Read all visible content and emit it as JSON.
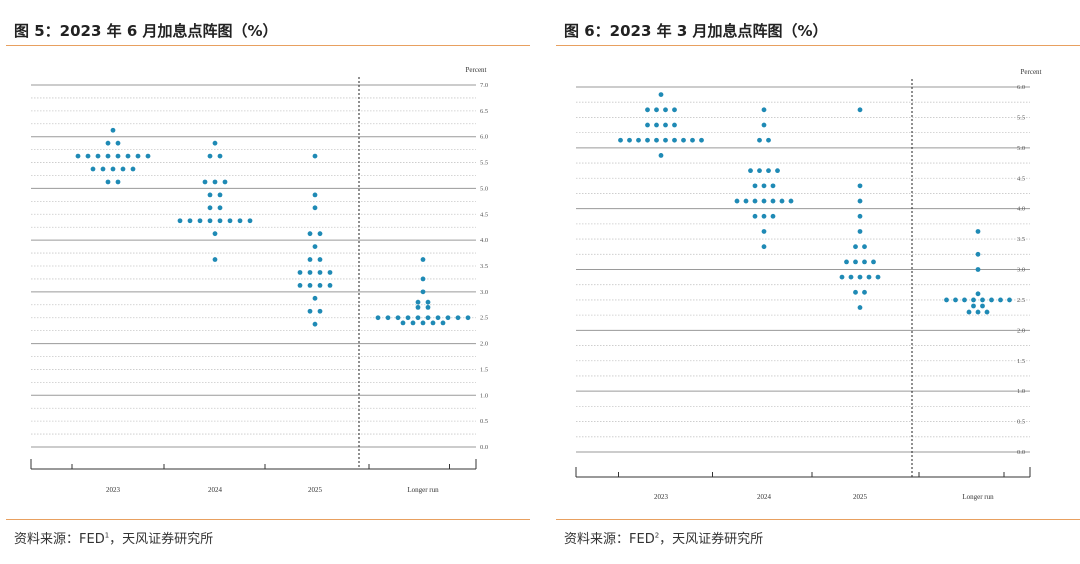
{
  "left": {
    "title": "图 5：2023 年 6 月加息点阵图（%）",
    "source_prefix": "资料来源：FED",
    "source_sup": "1",
    "source_suffix": "，天风证券研究所"
  },
  "right": {
    "title": "图 6：2023 年 3 月加息点阵图（%）",
    "source_prefix": "资料来源：FED",
    "source_sup": "2",
    "source_suffix": "，天风证券研究所"
  },
  "colors": {
    "dot": "#1f8ab5",
    "accent_rule": "#e8a060"
  },
  "chart_data": [
    {
      "type": "scatter",
      "title": "2023 年 6 月加息点阵图（%）",
      "ylabel": "Percent",
      "ylim": [
        0.0,
        7.0
      ],
      "yticks": [
        "0.0",
        "0.5",
        "1.0",
        "1.5",
        "2.0",
        "2.5",
        "3.0",
        "3.5",
        "4.0",
        "4.5",
        "5.0",
        "5.5",
        "6.0",
        "6.5",
        "7.0"
      ],
      "categories": [
        "2023",
        "2024",
        "2025",
        "Longer run"
      ],
      "dots": [
        {
          "category": "2023",
          "values": [
            [
              6.125,
              1
            ],
            [
              5.875,
              2
            ],
            [
              5.625,
              8
            ],
            [
              5.375,
              5
            ],
            [
              5.125,
              2
            ]
          ]
        },
        {
          "category": "2024",
          "values": [
            [
              5.875,
              1
            ],
            [
              5.625,
              2
            ],
            [
              5.125,
              3
            ],
            [
              4.875,
              2
            ],
            [
              4.625,
              2
            ],
            [
              4.375,
              8
            ],
            [
              4.125,
              1
            ],
            [
              3.625,
              1
            ]
          ]
        },
        {
          "category": "2025",
          "values": [
            [
              5.625,
              1
            ],
            [
              4.875,
              1
            ],
            [
              4.625,
              1
            ],
            [
              4.125,
              2
            ],
            [
              3.875,
              1
            ],
            [
              3.625,
              2
            ],
            [
              3.375,
              4
            ],
            [
              3.125,
              4
            ],
            [
              2.875,
              1
            ],
            [
              2.625,
              2
            ],
            [
              2.375,
              1
            ]
          ]
        },
        {
          "category": "Longer run",
          "values": [
            [
              3.625,
              1
            ],
            [
              3.25,
              1
            ],
            [
              3.0,
              1
            ],
            [
              2.8,
              2
            ],
            [
              2.7,
              2
            ],
            [
              2.5,
              10
            ],
            [
              2.4,
              5
            ]
          ]
        }
      ]
    },
    {
      "type": "scatter",
      "title": "2023 年 3 月加息点阵图（%）",
      "ylabel": "Percent",
      "ylim": [
        0.0,
        6.0
      ],
      "yticks": [
        "0.0",
        "0.5",
        "1.0",
        "1.5",
        "2.0",
        "2.5",
        "3.0",
        "3.5",
        "4.0",
        "4.5",
        "5.0",
        "5.5",
        "6.0"
      ],
      "categories": [
        "2023",
        "2024",
        "2025",
        "Longer run"
      ],
      "dots": [
        {
          "category": "2023",
          "values": [
            [
              5.875,
              1
            ],
            [
              5.625,
              4
            ],
            [
              5.375,
              4
            ],
            [
              5.125,
              10
            ],
            [
              4.875,
              1
            ]
          ]
        },
        {
          "category": "2024",
          "values": [
            [
              5.625,
              1
            ],
            [
              5.375,
              1
            ],
            [
              5.125,
              2
            ],
            [
              4.625,
              4
            ],
            [
              4.375,
              3
            ],
            [
              4.125,
              7
            ],
            [
              3.875,
              3
            ],
            [
              3.625,
              1
            ],
            [
              3.375,
              1
            ]
          ]
        },
        {
          "category": "2025",
          "values": [
            [
              5.625,
              1
            ],
            [
              4.375,
              1
            ],
            [
              4.125,
              1
            ],
            [
              3.875,
              1
            ],
            [
              3.625,
              1
            ],
            [
              3.375,
              2
            ],
            [
              3.125,
              4
            ],
            [
              2.875,
              5
            ],
            [
              2.625,
              2
            ],
            [
              2.375,
              1
            ]
          ]
        },
        {
          "category": "Longer run",
          "values": [
            [
              3.625,
              1
            ],
            [
              3.25,
              1
            ],
            [
              3.0,
              1
            ],
            [
              2.6,
              1
            ],
            [
              2.5,
              8
            ],
            [
              2.4,
              2
            ],
            [
              2.3,
              3
            ]
          ]
        }
      ]
    }
  ]
}
